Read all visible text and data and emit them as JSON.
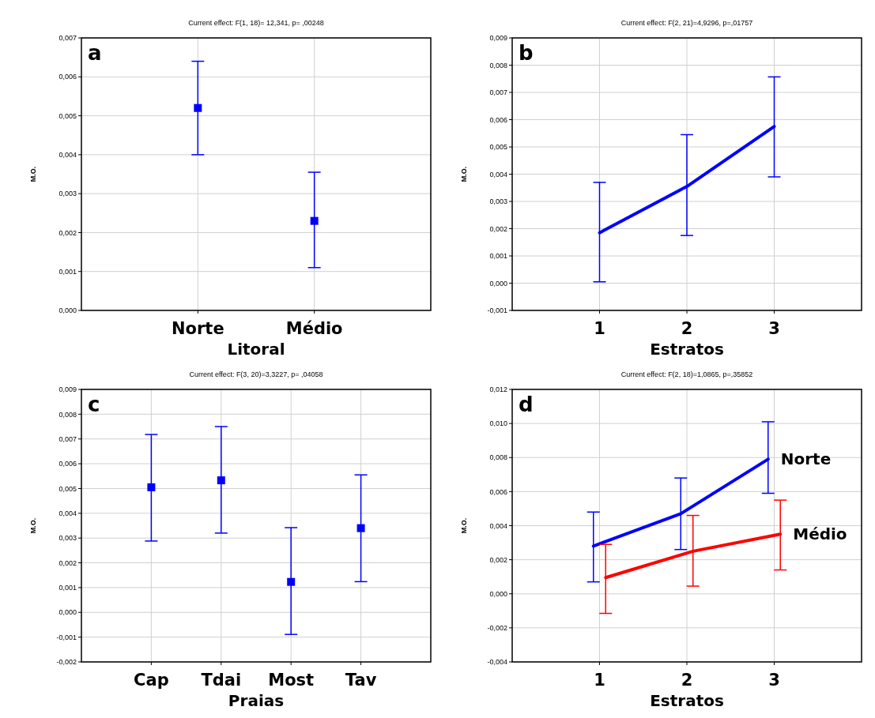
{
  "chart_data": [
    {
      "type": "scatter",
      "title": "Current effect: F(1, 18)= 12,341, p= ,00248",
      "ylabel": "M.O.",
      "xlabel": "Litoral",
      "categories": [
        "Norte",
        "Médio"
      ],
      "ylim": [
        0,
        0.007
      ],
      "yticks": [
        {
          "value": 0,
          "label": "0,000"
        },
        {
          "value": 0.001,
          "label": "0,001"
        },
        {
          "value": 0.002,
          "label": "0,002"
        },
        {
          "value": 0.003,
          "label": "0,003"
        },
        {
          "value": 0.004,
          "label": "0,004"
        },
        {
          "value": 0.005,
          "label": "0,005"
        },
        {
          "value": 0.006,
          "label": "0,006"
        },
        {
          "value": 0.007,
          "label": "0,007"
        }
      ],
      "grid": true,
      "marker": "square",
      "annotations": [
        "a"
      ],
      "series": [
        {
          "color": "#0000ff",
          "values": [
            0.0052,
            0.0023
          ],
          "errors": [
            [
              0.004,
              0.0064
            ],
            [
              0.0011,
              0.00355
            ]
          ]
        }
      ]
    },
    {
      "type": "line",
      "title": "Current effect: F(2, 21)=4,9296, p=,01757",
      "ylabel": "M.O.",
      "xlabel": "Estratos",
      "categories": [
        "1",
        "2",
        "3"
      ],
      "ylim": [
        -0.001,
        0.009
      ],
      "yticks": [
        {
          "value": -0.001,
          "label": "-0,001"
        },
        {
          "value": 0,
          "label": "0,000"
        },
        {
          "value": 0.001,
          "label": "0,001"
        },
        {
          "value": 0.002,
          "label": "0,002"
        },
        {
          "value": 0.003,
          "label": "0,003"
        },
        {
          "value": 0.004,
          "label": "0,004"
        },
        {
          "value": 0.005,
          "label": "0,005"
        },
        {
          "value": 0.006,
          "label": "0,006"
        },
        {
          "value": 0.007,
          "label": "0,007"
        },
        {
          "value": 0.008,
          "label": "0,008"
        },
        {
          "value": 0.009,
          "label": "0,009"
        }
      ],
      "grid": true,
      "annotations": [
        "b"
      ],
      "series": [
        {
          "color": "#0000ff",
          "values": [
            0.00185,
            0.00355,
            0.00575
          ],
          "errors": [
            [
              5e-05,
              0.0037
            ],
            [
              0.00175,
              0.00545
            ],
            [
              0.0039,
              0.00757
            ]
          ]
        }
      ]
    },
    {
      "type": "scatter",
      "title": "Current effect: F(3, 20)=3,3227, p= ,04058",
      "ylabel": "M.O.",
      "xlabel": "Praias",
      "categories": [
        "Cap",
        "Tdai",
        "Most",
        "Tav"
      ],
      "ylim": [
        -0.002,
        0.009
      ],
      "yticks": [
        {
          "value": -0.002,
          "label": "-0,002"
        },
        {
          "value": -0.001,
          "label": "-0,001"
        },
        {
          "value": 0,
          "label": "0,000"
        },
        {
          "value": 0.001,
          "label": "0,001"
        },
        {
          "value": 0.002,
          "label": "0,002"
        },
        {
          "value": 0.003,
          "label": "0,003"
        },
        {
          "value": 0.004,
          "label": "0,004"
        },
        {
          "value": 0.005,
          "label": "0,005"
        },
        {
          "value": 0.006,
          "label": "0,006"
        },
        {
          "value": 0.007,
          "label": "0,007"
        },
        {
          "value": 0.008,
          "label": "0,008"
        },
        {
          "value": 0.009,
          "label": "0,009"
        }
      ],
      "grid": true,
      "marker": "square",
      "annotations": [
        "c"
      ],
      "series": [
        {
          "color": "#0000ff",
          "values": [
            0.00505,
            0.00533,
            0.00123,
            0.0034
          ],
          "errors": [
            [
              0.00288,
              0.00718
            ],
            [
              0.0032,
              0.0075
            ],
            [
              -0.00089,
              0.00342
            ],
            [
              0.00124,
              0.00555
            ]
          ]
        }
      ]
    },
    {
      "type": "line",
      "title": "Current effect: F(2, 18)=1,0865, p=,35852",
      "ylabel": "M.O.",
      "xlabel": "Estratos",
      "categories": [
        "1",
        "2",
        "3"
      ],
      "ylim": [
        -0.004,
        0.012
      ],
      "yticks": [
        {
          "value": -0.004,
          "label": "-0,004"
        },
        {
          "value": -0.002,
          "label": "-0,002"
        },
        {
          "value": 0,
          "label": "0,000"
        },
        {
          "value": 0.002,
          "label": "0,002"
        },
        {
          "value": 0.004,
          "label": "0,004"
        },
        {
          "value": 0.006,
          "label": "0,006"
        },
        {
          "value": 0.008,
          "label": "0,008"
        },
        {
          "value": 0.01,
          "label": "0,010"
        },
        {
          "value": 0.012,
          "label": "0,012"
        }
      ],
      "grid": true,
      "annotations": [
        "d"
      ],
      "series": [
        {
          "name": "Norte",
          "color": "#0000ff",
          "values": [
            0.0028,
            0.0047,
            0.0079
          ],
          "errors": [
            [
              0.0007,
              0.0048
            ],
            [
              0.0026,
              0.0068
            ],
            [
              0.0059,
              0.0101
            ]
          ]
        },
        {
          "name": "Médio",
          "color": "#ff0000",
          "values": [
            0.00095,
            0.0025,
            0.0035
          ],
          "errors": [
            [
              -0.00115,
              0.0029
            ],
            [
              0.00045,
              0.0046
            ],
            [
              0.0014,
              0.0055
            ]
          ]
        }
      ]
    }
  ]
}
